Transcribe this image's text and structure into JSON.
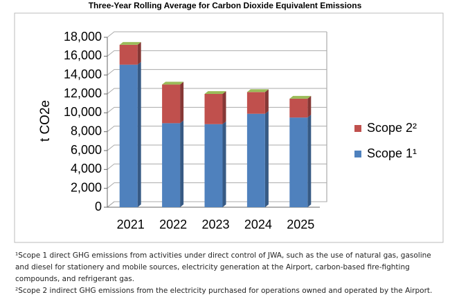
{
  "chart_data": {
    "type": "stacked-bar",
    "title": "Three-Year Rolling Average for Carbon Dioxide Equivalent Emissions",
    "y_label": "t CO2e",
    "categories": [
      "2021",
      "2022",
      "2023",
      "2024",
      "2025"
    ],
    "series": [
      {
        "name": "Scope 1¹",
        "color": "#4f81bd",
        "values": [
          15100,
          8900,
          8800,
          9900,
          9500
        ]
      },
      {
        "name": "Scope 2²",
        "color": "#c0504d",
        "values": [
          2100,
          4100,
          3200,
          2300,
          2000
        ]
      }
    ],
    "ylim": [
      0,
      18000
    ],
    "yticks": [
      0,
      {
        "value": 2000,
        "label": "2,000"
      },
      {
        "value": 4000,
        "label": "4,000"
      },
      {
        "value": 6000,
        "label": "6,000"
      },
      {
        "value": 8000,
        "label": "8,000"
      },
      {
        "value": 10000,
        "label": "10,000"
      },
      {
        "value": 12000,
        "label": "12,000"
      },
      {
        "value": 14000,
        "label": "14,000"
      },
      {
        "value": 16000,
        "label": "16,000"
      },
      {
        "value": 18000,
        "label": "18,000"
      }
    ],
    "grid": true,
    "legend": "right",
    "footnotes": [
      "¹Scope 1 direct GHG emissions from activities under direct control of JWA, such as the use of natural gas, gasoline and diesel for stationery and mobile sources, electricity generation at the Airport, carbon-based fire-fighting compounds, and refrigerant gas.",
      "²Scope 2 indirect GHG emissions from the electricity purchased for operations owned and operated by the Airport."
    ]
  }
}
